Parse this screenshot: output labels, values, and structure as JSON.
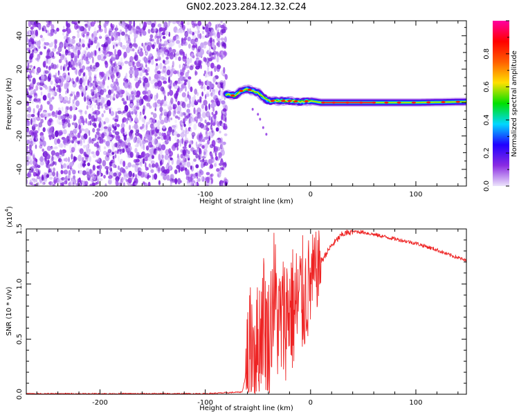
{
  "title": "GN02.2023.284.12.32.C24",
  "colors": {
    "noise": "#8a2be2",
    "line": "#ee2222",
    "axis": "#000000"
  },
  "chart_data": [
    {
      "type": "heatmap",
      "xlabel": "Height of straight line (km)",
      "ylabel": "Frequency (Hz)",
      "xlim": [
        -270,
        148
      ],
      "ylim": [
        -50,
        49
      ],
      "xticks": [
        -200,
        -100,
        0,
        100
      ],
      "xtick_labels": [
        "-200",
        "-100",
        "0",
        "100"
      ],
      "yticks": [
        -40,
        -20,
        0,
        20,
        40
      ],
      "ytick_labels": [
        "-40",
        "-20",
        "0",
        "20",
        "40"
      ],
      "noise_region": [
        -270,
        -80
      ],
      "signal_track": [
        {
          "x": -80,
          "y": 5
        },
        {
          "x": -72,
          "y": 4
        },
        {
          "x": -66,
          "y": 7
        },
        {
          "x": -60,
          "y": 8
        },
        {
          "x": -55,
          "y": 7
        },
        {
          "x": -50,
          "y": 6
        },
        {
          "x": -45,
          "y": 3
        },
        {
          "x": -40,
          "y": 1
        },
        {
          "x": -30,
          "y": 1
        },
        {
          "x": -20,
          "y": 1
        },
        {
          "x": -10,
          "y": 0.5
        },
        {
          "x": 0,
          "y": 1
        },
        {
          "x": 10,
          "y": 0
        },
        {
          "x": 50,
          "y": 0
        },
        {
          "x": 100,
          "y": 0
        },
        {
          "x": 148,
          "y": 0.5
        }
      ],
      "colorbar": {
        "label": "Normalized spectral amplitude",
        "ticks": [
          0.0,
          0.2,
          0.4,
          0.6,
          0.8
        ],
        "tick_labels": [
          "0.0",
          "0.2",
          "0.4",
          "0.6",
          "0.8"
        ],
        "range": [
          0,
          1
        ],
        "stops": [
          "#ece4fb",
          "#8a2be2",
          "#2000ff",
          "#00d8ff",
          "#00e000",
          "#ffe000",
          "#ff6000",
          "#ff0000",
          "#ff00a0"
        ]
      }
    },
    {
      "type": "line",
      "xlabel": "Height of straight line (km)",
      "ylabel": "SNR (10 * v/v)",
      "scale_label": "(x10",
      "scale_exp": "4",
      "scale_close": ")",
      "xlim": [
        -270,
        148
      ],
      "ylim": [
        0,
        1.5
      ],
      "xticks": [
        -200,
        -100,
        0,
        100
      ],
      "xtick_labels": [
        "-200",
        "-100",
        "0",
        "100"
      ],
      "yticks": [
        0.0,
        0.5,
        1.0,
        1.5
      ],
      "ytick_labels": [
        "0.0",
        "0.5",
        "1.0",
        "1.5"
      ],
      "series": [
        {
          "x": [
            -270,
            -200,
            -100,
            -65,
            -62,
            -55,
            -50,
            -45,
            -40,
            -35,
            -30,
            -25,
            -20,
            -15,
            -10,
            -5,
            0,
            5,
            10,
            15,
            20,
            25,
            30,
            40,
            50,
            60,
            70,
            80,
            90,
            100,
            110,
            120,
            130,
            140,
            148
          ],
          "y": [
            0.005,
            0.005,
            0.005,
            0.02,
            0.15,
            0.5,
            0.4,
            0.75,
            0.45,
            0.95,
            0.6,
            0.7,
            0.8,
            0.75,
            0.85,
            0.9,
            1.0,
            1.1,
            1.2,
            1.28,
            1.35,
            1.4,
            1.45,
            1.48,
            1.47,
            1.45,
            1.43,
            1.41,
            1.39,
            1.37,
            1.34,
            1.31,
            1.27,
            1.24,
            1.21
          ]
        }
      ]
    }
  ]
}
